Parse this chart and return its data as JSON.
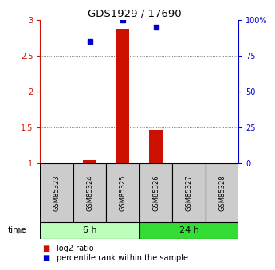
{
  "title": "GDS1929 / 17690",
  "samples": [
    "GSM85323",
    "GSM85324",
    "GSM85325",
    "GSM85326",
    "GSM85327",
    "GSM85328"
  ],
  "log2_ratio": [
    null,
    1.05,
    2.88,
    1.47,
    null,
    null
  ],
  "percentile_rank": [
    null,
    85.0,
    100.0,
    95.0,
    null,
    null
  ],
  "ylim_left": [
    1.0,
    3.0
  ],
  "ylim_right": [
    0,
    100
  ],
  "yticks_left": [
    1.0,
    1.5,
    2.0,
    2.5,
    3.0
  ],
  "ytick_labels_left": [
    "1",
    "1.5",
    "2",
    "2.5",
    "3"
  ],
  "yticks_right": [
    0,
    25,
    50,
    75,
    100
  ],
  "ytick_labels_right": [
    "0",
    "25",
    "50",
    "75",
    "100%"
  ],
  "groups": [
    {
      "label": "6 h",
      "indices": [
        0,
        1,
        2
      ],
      "color": "#bbffbb"
    },
    {
      "label": "24 h",
      "indices": [
        3,
        4,
        5
      ],
      "color": "#33dd33"
    }
  ],
  "bar_color": "#cc1100",
  "dot_color": "#0000cc",
  "left_axis_color": "#cc1100",
  "right_axis_color": "#0000cc",
  "grid_color": "#555555",
  "sample_box_color": "#cccccc",
  "bar_width": 0.4,
  "dot_size": 5
}
